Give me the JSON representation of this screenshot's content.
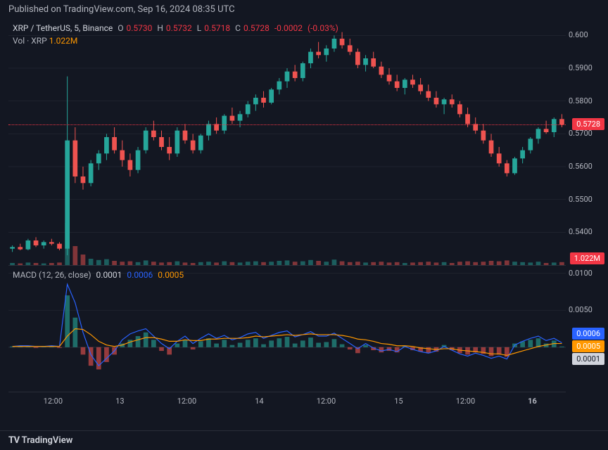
{
  "header": {
    "publish_text": "Published on TradingView.com, Sep 16, 2024 08:35 UTC"
  },
  "footer": {
    "brand": "TradingView",
    "logo_prefix": "TV"
  },
  "colors": {
    "background": "#131722",
    "text_primary": "#d1d4dc",
    "text_secondary": "#b2b5be",
    "grid": "#2a2e39",
    "up_candle": "#26a69a",
    "down_candle": "#ef5350",
    "accent_red": "#f23645",
    "accent_orange": "#ff9800",
    "accent_blue": "#2962ff",
    "macd_hist_pos": "#26a69a",
    "macd_hist_neg": "#ef5350",
    "dotted_line": "#f23645"
  },
  "price_chart": {
    "symbol_line": {
      "pair": "XRP / TetherUS, 5, Binance",
      "ohlc_labels": {
        "O": "O",
        "H": "H",
        "L": "L",
        "C": "C"
      },
      "O": "0.5730",
      "H": "0.5732",
      "L": "0.5718",
      "C": "0.5728",
      "change": "-0.0002",
      "change_pct": "(-0.03%)"
    },
    "volume_line": {
      "label": "Vol · XRP",
      "value": "1.022M"
    },
    "y_axis": {
      "min": 0.53,
      "max": 0.605,
      "ticks": [
        {
          "v": 0.6,
          "label": "0.600"
        },
        {
          "v": 0.59,
          "label": "0.5900"
        },
        {
          "v": 0.58,
          "label": "0.5800"
        },
        {
          "v": 0.57,
          "label": "0.5700"
        },
        {
          "v": 0.56,
          "label": "0.5600"
        },
        {
          "v": 0.55,
          "label": "0.5500"
        },
        {
          "v": 0.54,
          "label": "0.5400"
        }
      ]
    },
    "current_price": 0.5728,
    "current_price_label": "0.5728",
    "volume_badge": "1.022M",
    "candles": [
      {
        "o": 0.535,
        "h": 0.536,
        "l": 0.534,
        "c": 0.5355,
        "v": 0.05
      },
      {
        "o": 0.5355,
        "h": 0.5365,
        "l": 0.5345,
        "c": 0.5348,
        "v": 0.04
      },
      {
        "o": 0.5348,
        "h": 0.538,
        "l": 0.5345,
        "c": 0.5375,
        "v": 0.06
      },
      {
        "o": 0.5375,
        "h": 0.5385,
        "l": 0.5355,
        "c": 0.536,
        "v": 0.05
      },
      {
        "o": 0.536,
        "h": 0.5375,
        "l": 0.535,
        "c": 0.537,
        "v": 0.04
      },
      {
        "o": 0.537,
        "h": 0.538,
        "l": 0.536,
        "c": 0.5365,
        "v": 0.05
      },
      {
        "o": 0.5365,
        "h": 0.537,
        "l": 0.5345,
        "c": 0.535,
        "v": 0.06
      },
      {
        "o": 0.535,
        "h": 0.5875,
        "l": 0.533,
        "c": 0.568,
        "v": 1.0
      },
      {
        "o": 0.568,
        "h": 0.572,
        "l": 0.555,
        "c": 0.557,
        "v": 0.45
      },
      {
        "o": 0.557,
        "h": 0.56,
        "l": 0.553,
        "c": 0.555,
        "v": 0.25
      },
      {
        "o": 0.555,
        "h": 0.562,
        "l": 0.554,
        "c": 0.561,
        "v": 0.15
      },
      {
        "o": 0.561,
        "h": 0.565,
        "l": 0.559,
        "c": 0.564,
        "v": 0.12
      },
      {
        "o": 0.564,
        "h": 0.57,
        "l": 0.562,
        "c": 0.569,
        "v": 0.14
      },
      {
        "o": 0.569,
        "h": 0.572,
        "l": 0.564,
        "c": 0.565,
        "v": 0.1
      },
      {
        "o": 0.565,
        "h": 0.568,
        "l": 0.56,
        "c": 0.562,
        "v": 0.08
      },
      {
        "o": 0.562,
        "h": 0.564,
        "l": 0.557,
        "c": 0.559,
        "v": 0.09
      },
      {
        "o": 0.559,
        "h": 0.566,
        "l": 0.558,
        "c": 0.565,
        "v": 0.07
      },
      {
        "o": 0.565,
        "h": 0.572,
        "l": 0.564,
        "c": 0.571,
        "v": 0.11
      },
      {
        "o": 0.571,
        "h": 0.574,
        "l": 0.568,
        "c": 0.569,
        "v": 0.08
      },
      {
        "o": 0.569,
        "h": 0.571,
        "l": 0.565,
        "c": 0.566,
        "v": 0.06
      },
      {
        "o": 0.566,
        "h": 0.569,
        "l": 0.562,
        "c": 0.564,
        "v": 0.07
      },
      {
        "o": 0.564,
        "h": 0.572,
        "l": 0.563,
        "c": 0.571,
        "v": 0.09
      },
      {
        "o": 0.571,
        "h": 0.573,
        "l": 0.567,
        "c": 0.568,
        "v": 0.06
      },
      {
        "o": 0.568,
        "h": 0.57,
        "l": 0.564,
        "c": 0.565,
        "v": 0.05
      },
      {
        "o": 0.565,
        "h": 0.57,
        "l": 0.564,
        "c": 0.5695,
        "v": 0.07
      },
      {
        "o": 0.5695,
        "h": 0.574,
        "l": 0.568,
        "c": 0.573,
        "v": 0.08
      },
      {
        "o": 0.573,
        "h": 0.575,
        "l": 0.57,
        "c": 0.571,
        "v": 0.06
      },
      {
        "o": 0.571,
        "h": 0.576,
        "l": 0.57,
        "c": 0.5755,
        "v": 0.09
      },
      {
        "o": 0.5755,
        "h": 0.578,
        "l": 0.573,
        "c": 0.574,
        "v": 0.07
      },
      {
        "o": 0.574,
        "h": 0.577,
        "l": 0.572,
        "c": 0.576,
        "v": 0.06
      },
      {
        "o": 0.576,
        "h": 0.58,
        "l": 0.575,
        "c": 0.579,
        "v": 0.08
      },
      {
        "o": 0.579,
        "h": 0.582,
        "l": 0.577,
        "c": 0.581,
        "v": 0.09
      },
      {
        "o": 0.581,
        "h": 0.583,
        "l": 0.578,
        "c": 0.5795,
        "v": 0.07
      },
      {
        "o": 0.5795,
        "h": 0.584,
        "l": 0.579,
        "c": 0.5835,
        "v": 0.08
      },
      {
        "o": 0.5835,
        "h": 0.587,
        "l": 0.582,
        "c": 0.586,
        "v": 0.1
      },
      {
        "o": 0.586,
        "h": 0.59,
        "l": 0.584,
        "c": 0.589,
        "v": 0.11
      },
      {
        "o": 0.589,
        "h": 0.591,
        "l": 0.586,
        "c": 0.587,
        "v": 0.08
      },
      {
        "o": 0.587,
        "h": 0.592,
        "l": 0.586,
        "c": 0.5915,
        "v": 0.09
      },
      {
        "o": 0.5915,
        "h": 0.596,
        "l": 0.59,
        "c": 0.595,
        "v": 0.12
      },
      {
        "o": 0.595,
        "h": 0.598,
        "l": 0.593,
        "c": 0.594,
        "v": 0.1
      },
      {
        "o": 0.594,
        "h": 0.597,
        "l": 0.592,
        "c": 0.596,
        "v": 0.08
      },
      {
        "o": 0.596,
        "h": 0.6,
        "l": 0.595,
        "c": 0.599,
        "v": 0.13
      },
      {
        "o": 0.599,
        "h": 0.601,
        "l": 0.596,
        "c": 0.597,
        "v": 0.09
      },
      {
        "o": 0.597,
        "h": 0.599,
        "l": 0.594,
        "c": 0.595,
        "v": 0.07
      },
      {
        "o": 0.595,
        "h": 0.596,
        "l": 0.59,
        "c": 0.591,
        "v": 0.08
      },
      {
        "o": 0.591,
        "h": 0.594,
        "l": 0.589,
        "c": 0.593,
        "v": 0.06
      },
      {
        "o": 0.593,
        "h": 0.595,
        "l": 0.59,
        "c": 0.5905,
        "v": 0.07
      },
      {
        "o": 0.5905,
        "h": 0.592,
        "l": 0.587,
        "c": 0.588,
        "v": 0.08
      },
      {
        "o": 0.588,
        "h": 0.59,
        "l": 0.585,
        "c": 0.586,
        "v": 0.06
      },
      {
        "o": 0.586,
        "h": 0.588,
        "l": 0.583,
        "c": 0.584,
        "v": 0.07
      },
      {
        "o": 0.584,
        "h": 0.587,
        "l": 0.582,
        "c": 0.5865,
        "v": 0.05
      },
      {
        "o": 0.5865,
        "h": 0.588,
        "l": 0.584,
        "c": 0.585,
        "v": 0.06
      },
      {
        "o": 0.585,
        "h": 0.587,
        "l": 0.582,
        "c": 0.583,
        "v": 0.07
      },
      {
        "o": 0.583,
        "h": 0.585,
        "l": 0.58,
        "c": 0.581,
        "v": 0.08
      },
      {
        "o": 0.581,
        "h": 0.583,
        "l": 0.578,
        "c": 0.579,
        "v": 0.06
      },
      {
        "o": 0.579,
        "h": 0.581,
        "l": 0.576,
        "c": 0.5805,
        "v": 0.07
      },
      {
        "o": 0.5805,
        "h": 0.582,
        "l": 0.578,
        "c": 0.579,
        "v": 0.05
      },
      {
        "o": 0.579,
        "h": 0.58,
        "l": 0.575,
        "c": 0.576,
        "v": 0.08
      },
      {
        "o": 0.576,
        "h": 0.578,
        "l": 0.572,
        "c": 0.573,
        "v": 0.09
      },
      {
        "o": 0.573,
        "h": 0.575,
        "l": 0.57,
        "c": 0.571,
        "v": 0.07
      },
      {
        "o": 0.571,
        "h": 0.573,
        "l": 0.567,
        "c": 0.568,
        "v": 0.08
      },
      {
        "o": 0.568,
        "h": 0.57,
        "l": 0.563,
        "c": 0.564,
        "v": 0.1
      },
      {
        "o": 0.564,
        "h": 0.566,
        "l": 0.56,
        "c": 0.561,
        "v": 0.09
      },
      {
        "o": 0.561,
        "h": 0.562,
        "l": 0.557,
        "c": 0.558,
        "v": 0.11
      },
      {
        "o": 0.558,
        "h": 0.563,
        "l": 0.5575,
        "c": 0.5625,
        "v": 0.08
      },
      {
        "o": 0.5625,
        "h": 0.566,
        "l": 0.561,
        "c": 0.565,
        "v": 0.07
      },
      {
        "o": 0.565,
        "h": 0.569,
        "l": 0.564,
        "c": 0.5685,
        "v": 0.06
      },
      {
        "o": 0.5685,
        "h": 0.572,
        "l": 0.567,
        "c": 0.5715,
        "v": 0.08
      },
      {
        "o": 0.5715,
        "h": 0.574,
        "l": 0.57,
        "c": 0.5705,
        "v": 0.05
      },
      {
        "o": 0.5705,
        "h": 0.575,
        "l": 0.569,
        "c": 0.5745,
        "v": 0.06
      },
      {
        "o": 0.5745,
        "h": 0.576,
        "l": 0.572,
        "c": 0.5728,
        "v": 0.07
      }
    ]
  },
  "macd_chart": {
    "label": "MACD (12, 26, close)",
    "values": {
      "hist": "0.0001",
      "macd": "0.0006",
      "signal": "0.0005"
    },
    "y_axis": {
      "min": -0.006,
      "max": 0.011,
      "ticks": [
        {
          "v": 0.01,
          "label": "0.0100"
        },
        {
          "v": 0.005,
          "label": "0.0050"
        }
      ]
    },
    "badges": [
      {
        "v": 0.0006,
        "label": "0.0006",
        "color": "#2962ff"
      },
      {
        "v": 0.0005,
        "label": "0.0005",
        "color": "#ff9800"
      },
      {
        "v": 0.0001,
        "label": "0.0001",
        "color": "#d1d4dc",
        "text_color": "#131722"
      }
    ],
    "series": {
      "histogram": [
        0.0001,
        0.0002,
        0.0001,
        -0.0001,
        0.0001,
        0.0001,
        -0.0001,
        0.007,
        0.004,
        -0.001,
        -0.0025,
        -0.003,
        -0.002,
        -0.001,
        0.0005,
        0.001,
        0.0015,
        0.002,
        0.001,
        -0.0005,
        -0.001,
        0.0005,
        0.001,
        -0.0003,
        0.0008,
        0.0012,
        0.0005,
        0.001,
        0.0003,
        0.0006,
        0.001,
        0.0012,
        0.0004,
        0.0009,
        0.0012,
        0.0014,
        0.0005,
        0.0009,
        0.0013,
        0.0006,
        0.0007,
        0.0011,
        0.0004,
        -0.0003,
        -0.0008,
        0.0003,
        -0.0004,
        -0.0007,
        -0.0005,
        -0.0007,
        0.0002,
        -0.0004,
        -0.0006,
        -0.0008,
        -0.0006,
        0.0003,
        -0.0004,
        -0.0008,
        -0.001,
        -0.0007,
        -0.0009,
        -0.0012,
        -0.001,
        -0.0013,
        0.0005,
        0.0008,
        0.001,
        0.0012,
        0.0005,
        0.0009,
        0.0001
      ],
      "macd": [
        0.0001,
        0.0002,
        0.0002,
        0.0001,
        0.0001,
        0.0002,
        0.0001,
        0.0085,
        0.006,
        0.002,
        -0.001,
        -0.0025,
        -0.0015,
        -0.0005,
        0.001,
        0.0018,
        0.0022,
        0.0025,
        0.0015,
        0.0005,
        -0.0002,
        0.0008,
        0.0015,
        0.0005,
        0.0012,
        0.0018,
        0.0012,
        0.0016,
        0.001,
        0.0013,
        0.0018,
        0.002,
        0.0012,
        0.0016,
        0.002,
        0.0022,
        0.0014,
        0.0017,
        0.0021,
        0.0015,
        0.0015,
        0.0019,
        0.0012,
        0.0005,
        -0.0002,
        0.0005,
        -0.0001,
        -0.0005,
        -0.0003,
        -0.0006,
        0.0001,
        -0.0003,
        -0.0006,
        -0.0008,
        -0.0005,
        0.0001,
        -0.0004,
        -0.0009,
        -0.0012,
        -0.0008,
        -0.0011,
        -0.0015,
        -0.0012,
        -0.0016,
        0.0003,
        0.0008,
        0.0012,
        0.0015,
        0.0009,
        0.0012,
        0.0006
      ],
      "signal": [
        0.0001,
        0.0001,
        0.0001,
        0.0001,
        0.0001,
        0.0001,
        0.0001,
        0.0015,
        0.0025,
        0.0024,
        0.0017,
        0.0008,
        0.0003,
        0.0001,
        0.0003,
        0.0007,
        0.001,
        0.0013,
        0.0013,
        0.0011,
        0.0008,
        0.0008,
        0.001,
        0.0009,
        0.0009,
        0.0011,
        0.0011,
        0.0012,
        0.0012,
        0.0012,
        0.0013,
        0.0015,
        0.0014,
        0.0015,
        0.0016,
        0.0017,
        0.0016,
        0.0017,
        0.0018,
        0.0017,
        0.0017,
        0.0017,
        0.0016,
        0.0014,
        0.0011,
        0.001,
        0.0008,
        0.0005,
        0.0004,
        0.0002,
        0.0002,
        0.0001,
        -0.0001,
        -0.0002,
        -0.0003,
        -0.0002,
        -0.0002,
        -0.0004,
        -0.0005,
        -0.0006,
        -0.0007,
        -0.0009,
        -0.0009,
        -0.0011,
        -0.0008,
        -0.0005,
        -0.0002,
        0.0001,
        0.0003,
        0.0005,
        0.0005
      ]
    }
  },
  "x_axis": {
    "ticks": [
      {
        "pos": 0.08,
        "label": "12:00"
      },
      {
        "pos": 0.2,
        "label": "13"
      },
      {
        "pos": 0.32,
        "label": "12:00"
      },
      {
        "pos": 0.45,
        "label": "14"
      },
      {
        "pos": 0.57,
        "label": "12:00"
      },
      {
        "pos": 0.7,
        "label": "15"
      },
      {
        "pos": 0.82,
        "label": "12:00"
      },
      {
        "pos": 0.94,
        "label": "16",
        "bold": true
      }
    ]
  }
}
